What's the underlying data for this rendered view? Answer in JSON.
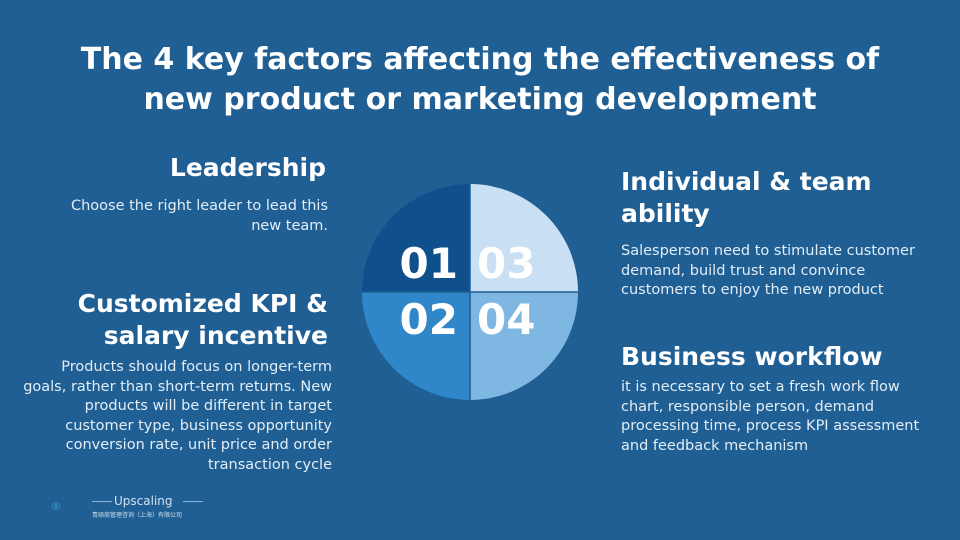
{
  "title": {
    "line1": "The 4 key factors affecting the effectiveness of",
    "line2": "new product or marketing development"
  },
  "factors": [
    {
      "number": "01",
      "heading": "Leadership",
      "body": "Choose the right leader to lead this new team.",
      "color": "#0f4f8c"
    },
    {
      "number": "02",
      "heading": "Customized KPI & salary incentive",
      "body": "Products should focus on longer-term goals, rather than short-term returns. New products will be different in target customer type, business opportunity conversion rate, unit price and order transaction cycle",
      "color": "#2f86c8"
    },
    {
      "number": "03",
      "heading": "Individual & team ability",
      "body": "Salesperson need to stimulate customer demand, build trust and convince customers to enjoy the new product",
      "color": "#c9e0f4"
    },
    {
      "number": "04",
      "heading": "Business workflow",
      "body": "it is necessary to set a fresh work flow chart, responsible person, demand processing time, process KPI assessment and feedback mechanism",
      "color": "#7fb7e3"
    }
  ],
  "logo": {
    "icon": "upscaling-s-logo-icon",
    "name": "Upscaling",
    "subtitle": "青硕商管理咨询（上海）有限公司"
  }
}
